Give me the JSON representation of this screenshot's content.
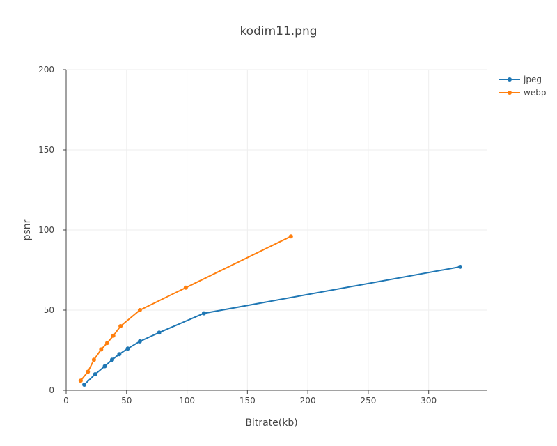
{
  "chart_data": {
    "type": "line",
    "title": "kodim11.png",
    "xlabel": "Bitrate(kb)",
    "ylabel": "psnr",
    "xlim": [
      0,
      348
    ],
    "ylim": [
      0,
      200
    ],
    "x_ticks": [
      0,
      50,
      100,
      150,
      200,
      250,
      300
    ],
    "y_ticks": [
      0,
      50,
      100,
      150,
      200
    ],
    "grid": true,
    "legend_position": "top-right",
    "series": [
      {
        "name": "jpeg",
        "color": "#1f77b4",
        "x": [
          15,
          24,
          32,
          38,
          44,
          51,
          61,
          77,
          114,
          326
        ],
        "y": [
          3.5,
          10,
          15,
          19,
          22.5,
          26,
          30.5,
          36,
          48,
          77
        ]
      },
      {
        "name": "webp",
        "color": "#ff7f0e",
        "x": [
          12,
          18,
          23,
          29,
          34,
          39,
          45,
          61,
          99,
          186
        ],
        "y": [
          6,
          11.5,
          19,
          25.5,
          29.5,
          34,
          40,
          50,
          64,
          96
        ]
      }
    ]
  }
}
